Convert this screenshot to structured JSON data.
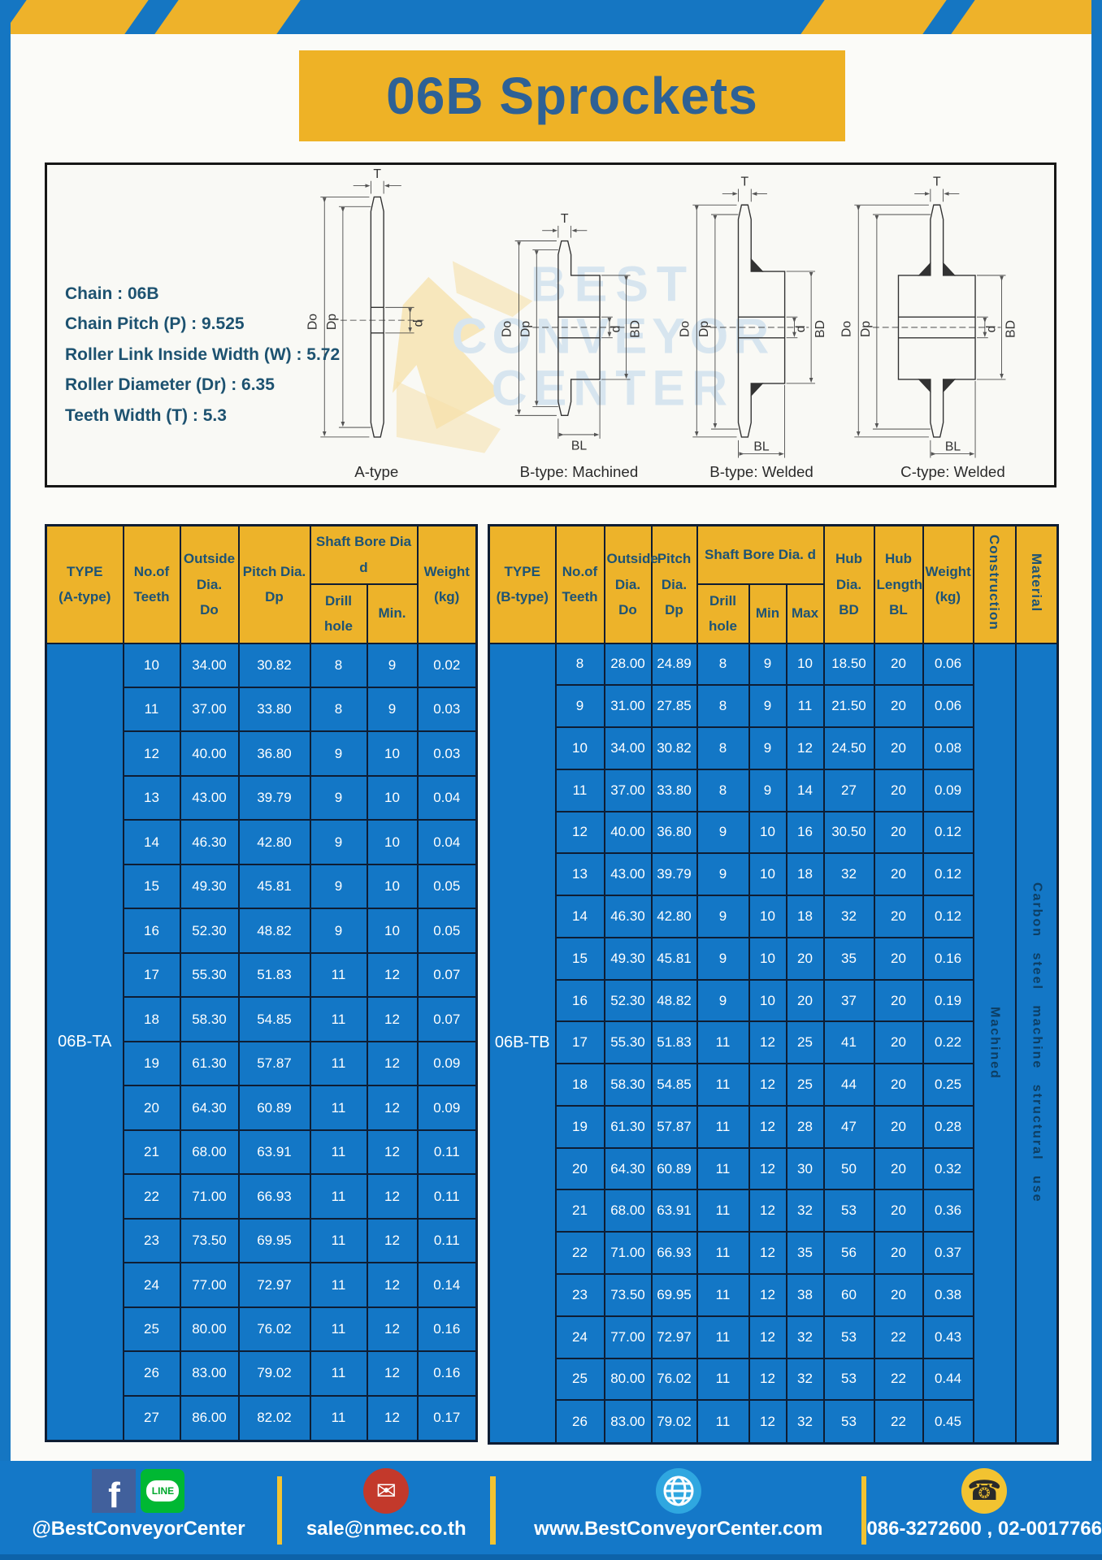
{
  "colors": {
    "frame_blue": "#1576c2",
    "cell_blue": "#1377c6",
    "gold": "#eeb226",
    "header_text_navy": "#1d5375",
    "title_navy": "#2e6195",
    "cell_border": "#0e1d33",
    "vertical_text_navy": "#0d3e63",
    "facebook_blue": "#41609c",
    "line_green": "#00b833",
    "email_red": "#c3392b",
    "globe_blue": "#2fa7e0",
    "phone_yellow": "#f2c331"
  },
  "header": {
    "title": "06B Sprockets"
  },
  "specs": [
    "Chain : 06B",
    "Chain Pitch (P) : 9.525",
    "Roller Link Inside Width (W) : 5.72",
    "Roller Diameter (Dr) : 6.35",
    "Teeth Width (T) : 5.3"
  ],
  "diagram": {
    "captions": [
      "A-type",
      "B-type: Machined",
      "B-type: Welded",
      "C-type: Welded"
    ],
    "dims": {
      "t": "T",
      "outside": "Do",
      "pitch": "Dp",
      "bore": "d",
      "hub_dia": "BD",
      "hub_len": "BL"
    },
    "watermark": [
      "BEST",
      "CONVEYOR",
      "CENTER"
    ]
  },
  "tables": {
    "a": {
      "type_value": "06B-TA",
      "h": {
        "type1": "TYPE",
        "type2": "(A-type)",
        "teeth1": "No.of",
        "teeth2": "Teeth",
        "out1": "Outside",
        "out2": "Dia.",
        "out3": "Do",
        "pitch1": "Pitch Dia.",
        "pitch2": "Dp",
        "bore": "Shaft Bore Dia d",
        "drill": "Drill hole",
        "min": "Min.",
        "w1": "Weight",
        "w2": "(kg)"
      },
      "rows": [
        [
          "10",
          "34.00",
          "30.82",
          "8",
          "9",
          "0.02"
        ],
        [
          "11",
          "37.00",
          "33.80",
          "8",
          "9",
          "0.03"
        ],
        [
          "12",
          "40.00",
          "36.80",
          "9",
          "10",
          "0.03"
        ],
        [
          "13",
          "43.00",
          "39.79",
          "9",
          "10",
          "0.04"
        ],
        [
          "14",
          "46.30",
          "42.80",
          "9",
          "10",
          "0.04"
        ],
        [
          "15",
          "49.30",
          "45.81",
          "9",
          "10",
          "0.05"
        ],
        [
          "16",
          "52.30",
          "48.82",
          "9",
          "10",
          "0.05"
        ],
        [
          "17",
          "55.30",
          "51.83",
          "11",
          "12",
          "0.07"
        ],
        [
          "18",
          "58.30",
          "54.85",
          "11",
          "12",
          "0.07"
        ],
        [
          "19",
          "61.30",
          "57.87",
          "11",
          "12",
          "0.09"
        ],
        [
          "20",
          "64.30",
          "60.89",
          "11",
          "12",
          "0.09"
        ],
        [
          "21",
          "68.00",
          "63.91",
          "11",
          "12",
          "0.11"
        ],
        [
          "22",
          "71.00",
          "66.93",
          "11",
          "12",
          "0.11"
        ],
        [
          "23",
          "73.50",
          "69.95",
          "11",
          "12",
          "0.11"
        ],
        [
          "24",
          "77.00",
          "72.97",
          "11",
          "12",
          "0.14"
        ],
        [
          "25",
          "80.00",
          "76.02",
          "11",
          "12",
          "0.16"
        ],
        [
          "26",
          "83.00",
          "79.02",
          "11",
          "12",
          "0.16"
        ],
        [
          "27",
          "86.00",
          "82.02",
          "11",
          "12",
          "0.17"
        ]
      ]
    },
    "b": {
      "type_value": "06B-TB",
      "construction_value": "Machined",
      "material_value": "Carbon steel machine structural use",
      "h": {
        "type1": "TYPE",
        "type2": "(B-type)",
        "teeth1": "No.of",
        "teeth2": "Teeth",
        "out1": "Outside",
        "out2": "Dia.",
        "out3": "Do",
        "pitch1": "Pitch",
        "pitch2": "Dia.",
        "pitch3": "Dp",
        "bore": "Shaft Bore Dia. d",
        "drill": "Drill hole",
        "min": "Min",
        "max": "Max",
        "hubd1": "Hub",
        "hubd2": "Dia.",
        "hubd3": "BD",
        "hubl1": "Hub",
        "hubl2": "Length",
        "hubl3": "BL",
        "w1": "Weight",
        "w2": "(kg)",
        "construction": "Construction",
        "material": "Material"
      },
      "rows": [
        [
          "8",
          "28.00",
          "24.89",
          "8",
          "9",
          "10",
          "18.50",
          "20",
          "0.06"
        ],
        [
          "9",
          "31.00",
          "27.85",
          "8",
          "9",
          "11",
          "21.50",
          "20",
          "0.06"
        ],
        [
          "10",
          "34.00",
          "30.82",
          "8",
          "9",
          "12",
          "24.50",
          "20",
          "0.08"
        ],
        [
          "11",
          "37.00",
          "33.80",
          "8",
          "9",
          "14",
          "27",
          "20",
          "0.09"
        ],
        [
          "12",
          "40.00",
          "36.80",
          "9",
          "10",
          "16",
          "30.50",
          "20",
          "0.12"
        ],
        [
          "13",
          "43.00",
          "39.79",
          "9",
          "10",
          "18",
          "32",
          "20",
          "0.12"
        ],
        [
          "14",
          "46.30",
          "42.80",
          "9",
          "10",
          "18",
          "32",
          "20",
          "0.12"
        ],
        [
          "15",
          "49.30",
          "45.81",
          "9",
          "10",
          "20",
          "35",
          "20",
          "0.16"
        ],
        [
          "16",
          "52.30",
          "48.82",
          "9",
          "10",
          "20",
          "37",
          "20",
          "0.19"
        ],
        [
          "17",
          "55.30",
          "51.83",
          "11",
          "12",
          "25",
          "41",
          "20",
          "0.22"
        ],
        [
          "18",
          "58.30",
          "54.85",
          "11",
          "12",
          "25",
          "44",
          "20",
          "0.25"
        ],
        [
          "19",
          "61.30",
          "57.87",
          "11",
          "12",
          "28",
          "47",
          "20",
          "0.28"
        ],
        [
          "20",
          "64.30",
          "60.89",
          "11",
          "12",
          "30",
          "50",
          "20",
          "0.32"
        ],
        [
          "21",
          "68.00",
          "63.91",
          "11",
          "12",
          "32",
          "53",
          "20",
          "0.36"
        ],
        [
          "22",
          "71.00",
          "66.93",
          "11",
          "12",
          "35",
          "56",
          "20",
          "0.37"
        ],
        [
          "23",
          "73.50",
          "69.95",
          "11",
          "12",
          "38",
          "60",
          "20",
          "0.38"
        ],
        [
          "24",
          "77.00",
          "72.97",
          "11",
          "12",
          "32",
          "53",
          "22",
          "0.43"
        ],
        [
          "25",
          "80.00",
          "76.02",
          "11",
          "12",
          "32",
          "53",
          "22",
          "0.44"
        ],
        [
          "26",
          "83.00",
          "79.02",
          "11",
          "12",
          "32",
          "53",
          "22",
          "0.45"
        ]
      ]
    }
  },
  "footer": {
    "facebook_letter": "f",
    "line_badge": "LINE",
    "social": "@BestConveyorCenter",
    "email": "sale@nmec.co.th",
    "website": "www.BestConveyorCenter.com",
    "phone": "086-3272600 , 02-0017766",
    "email_glyph": "✉",
    "phone_glyph": "☎"
  }
}
